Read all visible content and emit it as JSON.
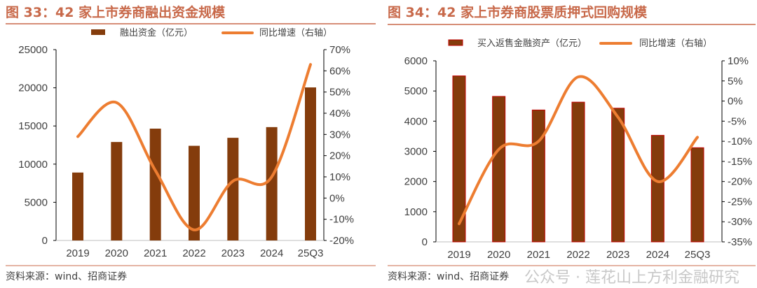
{
  "chart_data": [
    {
      "type": "bar+line",
      "title": "图 33：42 家上市券商融出资金规模",
      "categories": [
        "2019",
        "2020",
        "2021",
        "2022",
        "2023",
        "2024",
        "25Q3"
      ],
      "series": [
        {
          "name": "融出资金（亿元）",
          "type": "bar",
          "axis": "left",
          "color": "#843c0c",
          "values": [
            8900,
            12900,
            14650,
            12400,
            13450,
            14850,
            20050
          ]
        },
        {
          "name": "同比增速（右轴）",
          "type": "line",
          "axis": "right",
          "color": "#ed7d31",
          "values": [
            29,
            45,
            13,
            -15,
            8,
            10,
            63
          ]
        }
      ],
      "yleft": {
        "range": [
          0,
          25000
        ],
        "ticks": [
          0,
          5000,
          10000,
          15000,
          20000,
          25000
        ],
        "labels": [
          "0",
          "5000",
          "10000",
          "15000",
          "20000",
          "25000"
        ]
      },
      "yright": {
        "range": [
          -20,
          70
        ],
        "ticks": [
          -20,
          -10,
          0,
          10,
          20,
          30,
          40,
          50,
          60,
          70
        ],
        "labels": [
          "-20%",
          "-10%",
          "0%",
          "10%",
          "20%",
          "30%",
          "40%",
          "50%",
          "60%",
          "70%"
        ]
      },
      "legend": "top",
      "grid": false,
      "source": "资料来源：wind、招商证券"
    },
    {
      "type": "bar+line",
      "title": "图 34：42 家上市券商股票质押式回购规模",
      "categories": [
        "2019",
        "2020",
        "2021",
        "2022",
        "2023",
        "2024",
        "25Q3"
      ],
      "series": [
        {
          "name": "买入返售金融资产（亿元）",
          "type": "bar",
          "axis": "left",
          "color": "#843c0c",
          "edge": "#c00000",
          "values": [
            5500,
            4820,
            4370,
            4630,
            4430,
            3530,
            3120
          ]
        },
        {
          "name": "同比增速（右轴）",
          "type": "line",
          "axis": "right",
          "color": "#ed7d31",
          "values": [
            -30.5,
            -12,
            -10,
            6,
            -4,
            -20,
            -9
          ]
        }
      ],
      "yleft": {
        "range": [
          0,
          6000
        ],
        "ticks": [
          0,
          1000,
          2000,
          3000,
          4000,
          5000,
          6000
        ],
        "labels": [
          "0",
          "1000",
          "2000",
          "3000",
          "4000",
          "5000",
          "6000"
        ]
      },
      "yright": {
        "range": [
          -35,
          10
        ],
        "ticks": [
          -35,
          -30,
          -25,
          -20,
          -15,
          -10,
          -5,
          0,
          5,
          10
        ],
        "labels": [
          "-35%",
          "-30%",
          "-25%",
          "-20%",
          "-15%",
          "-10%",
          "-5%",
          "0%",
          "5%",
          "10%"
        ]
      },
      "legend": "top",
      "grid": false,
      "source": "资料来源：wind、招商证券"
    }
  ],
  "watermark": "公众号 · 莲花山上方利金融研究",
  "colors": {
    "title": "#c8694a",
    "bar": "#843c0c",
    "line": "#ed7d31"
  }
}
